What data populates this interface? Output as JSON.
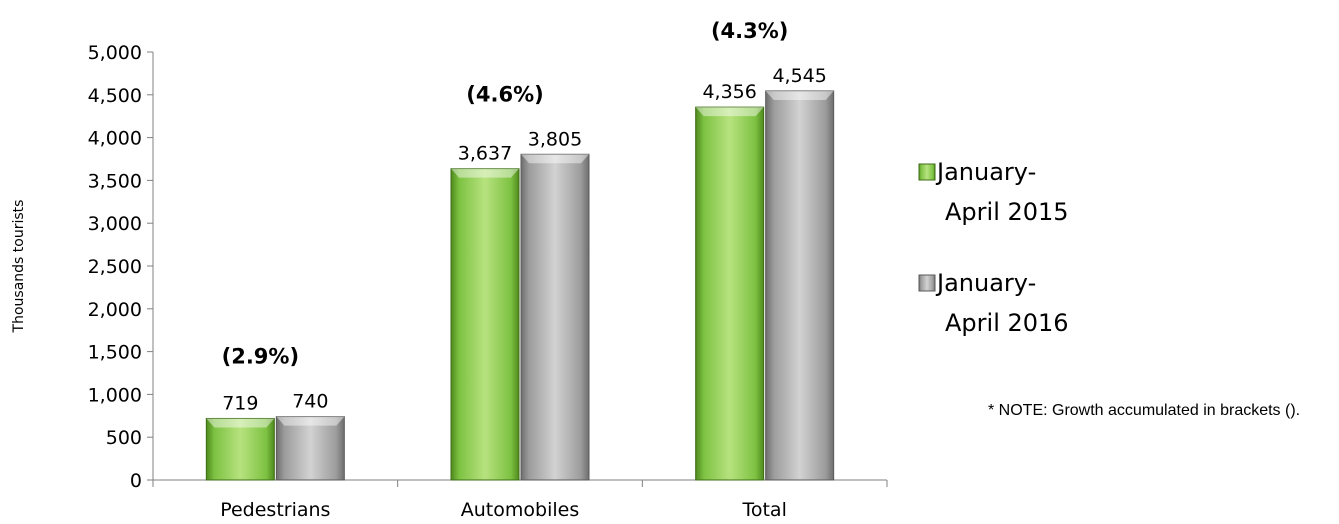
{
  "chart_data": {
    "type": "bar",
    "title": "",
    "xlabel": "",
    "ylabel": "Thousands  tourists",
    "categories": [
      "Pedestrians",
      "Automobiles",
      "Total"
    ],
    "series": [
      {
        "name": "January-April 2015",
        "legend_lines": [
          "January-",
          "April 2015"
        ],
        "values": [
          719,
          3637,
          4356
        ],
        "labels": [
          "719",
          "3,637",
          "4,356"
        ],
        "color": "#7dc242"
      },
      {
        "name": "January-April 2016",
        "legend_lines": [
          "January-",
          "April 2016"
        ],
        "values": [
          740,
          3805,
          4545
        ],
        "labels": [
          "740",
          "3,805",
          "4,545"
        ],
        "color": "#a6a6a6"
      }
    ],
    "growth_labels": [
      "(2.9%)",
      "(4.6%)",
      "(4.3%)"
    ],
    "ylim": [
      0,
      5000
    ],
    "yticks": [
      0,
      500,
      1000,
      1500,
      2000,
      2500,
      3000,
      3500,
      4000,
      4500,
      5000
    ],
    "ytick_labels": [
      "0",
      "500",
      "1,000",
      "1,500",
      "2,000",
      "2,500",
      "3,000",
      "3,500",
      "4,000",
      "4,500",
      "5,000"
    ],
    "grid": false,
    "legend_position": "right"
  },
  "note": "* NOTE: Growth accumulated in brackets ()."
}
